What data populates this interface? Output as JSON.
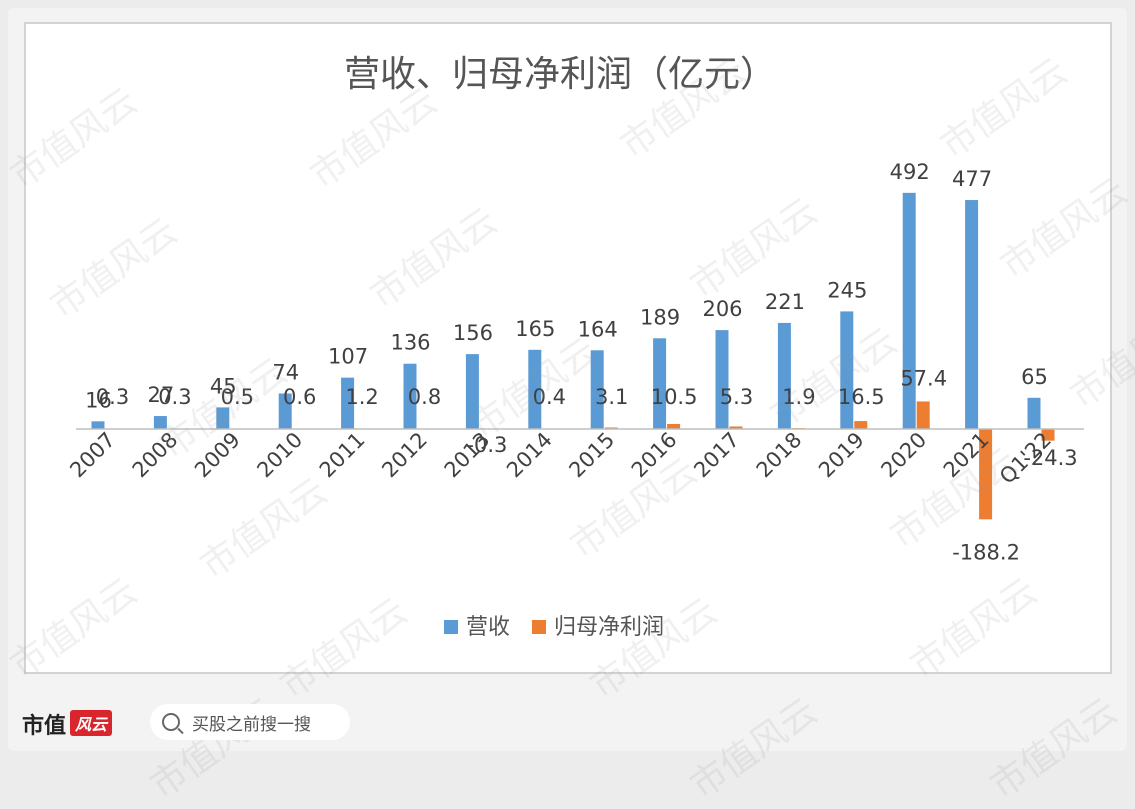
{
  "watermark": "市值风云",
  "footer": {
    "logo_text": "市值",
    "logo_mark": "风云",
    "search_text": "买股之前搜一搜"
  },
  "colors": {
    "revenue": "#5b9bd5",
    "profit": "#ed7d31"
  },
  "chart_data": {
    "type": "bar",
    "title": "营收、归母净利润（亿元）",
    "categories": [
      "2007",
      "2008",
      "2009",
      "2010",
      "2011",
      "2012",
      "2013",
      "2014",
      "2015",
      "2016",
      "2017",
      "2018",
      "2019",
      "2020",
      "2021",
      "Q1'22"
    ],
    "series": [
      {
        "name": "营收",
        "values": [
          16,
          27,
          45,
          74,
          107,
          136,
          156,
          165,
          164,
          189,
          206,
          221,
          245,
          492,
          477,
          65
        ]
      },
      {
        "name": "归母净利润",
        "values": [
          0.3,
          0.3,
          0.5,
          0.6,
          1.2,
          0.8,
          -0.3,
          0.4,
          3.1,
          10.5,
          5.3,
          1.9,
          16.5,
          57.4,
          -188.2,
          -24.3
        ]
      }
    ],
    "revenue_labels": [
      "16",
      "27",
      "45",
      "74",
      "107",
      "136",
      "156",
      "165",
      "164",
      "189",
      "206",
      "221",
      "245",
      "492",
      "477",
      "65"
    ],
    "profit_labels": [
      "0.3",
      "0.3",
      "0.5",
      "0.6",
      "1.2",
      "0.8",
      "-0.3",
      "0.4",
      "3.1",
      "10.5",
      "5.3",
      "1.9",
      "16.5",
      "57.4",
      "-188.2",
      "-24.3"
    ],
    "xlabel": "",
    "ylabel": "",
    "ylim": [
      -200,
      500
    ],
    "grid": false,
    "legend": "bottom"
  }
}
